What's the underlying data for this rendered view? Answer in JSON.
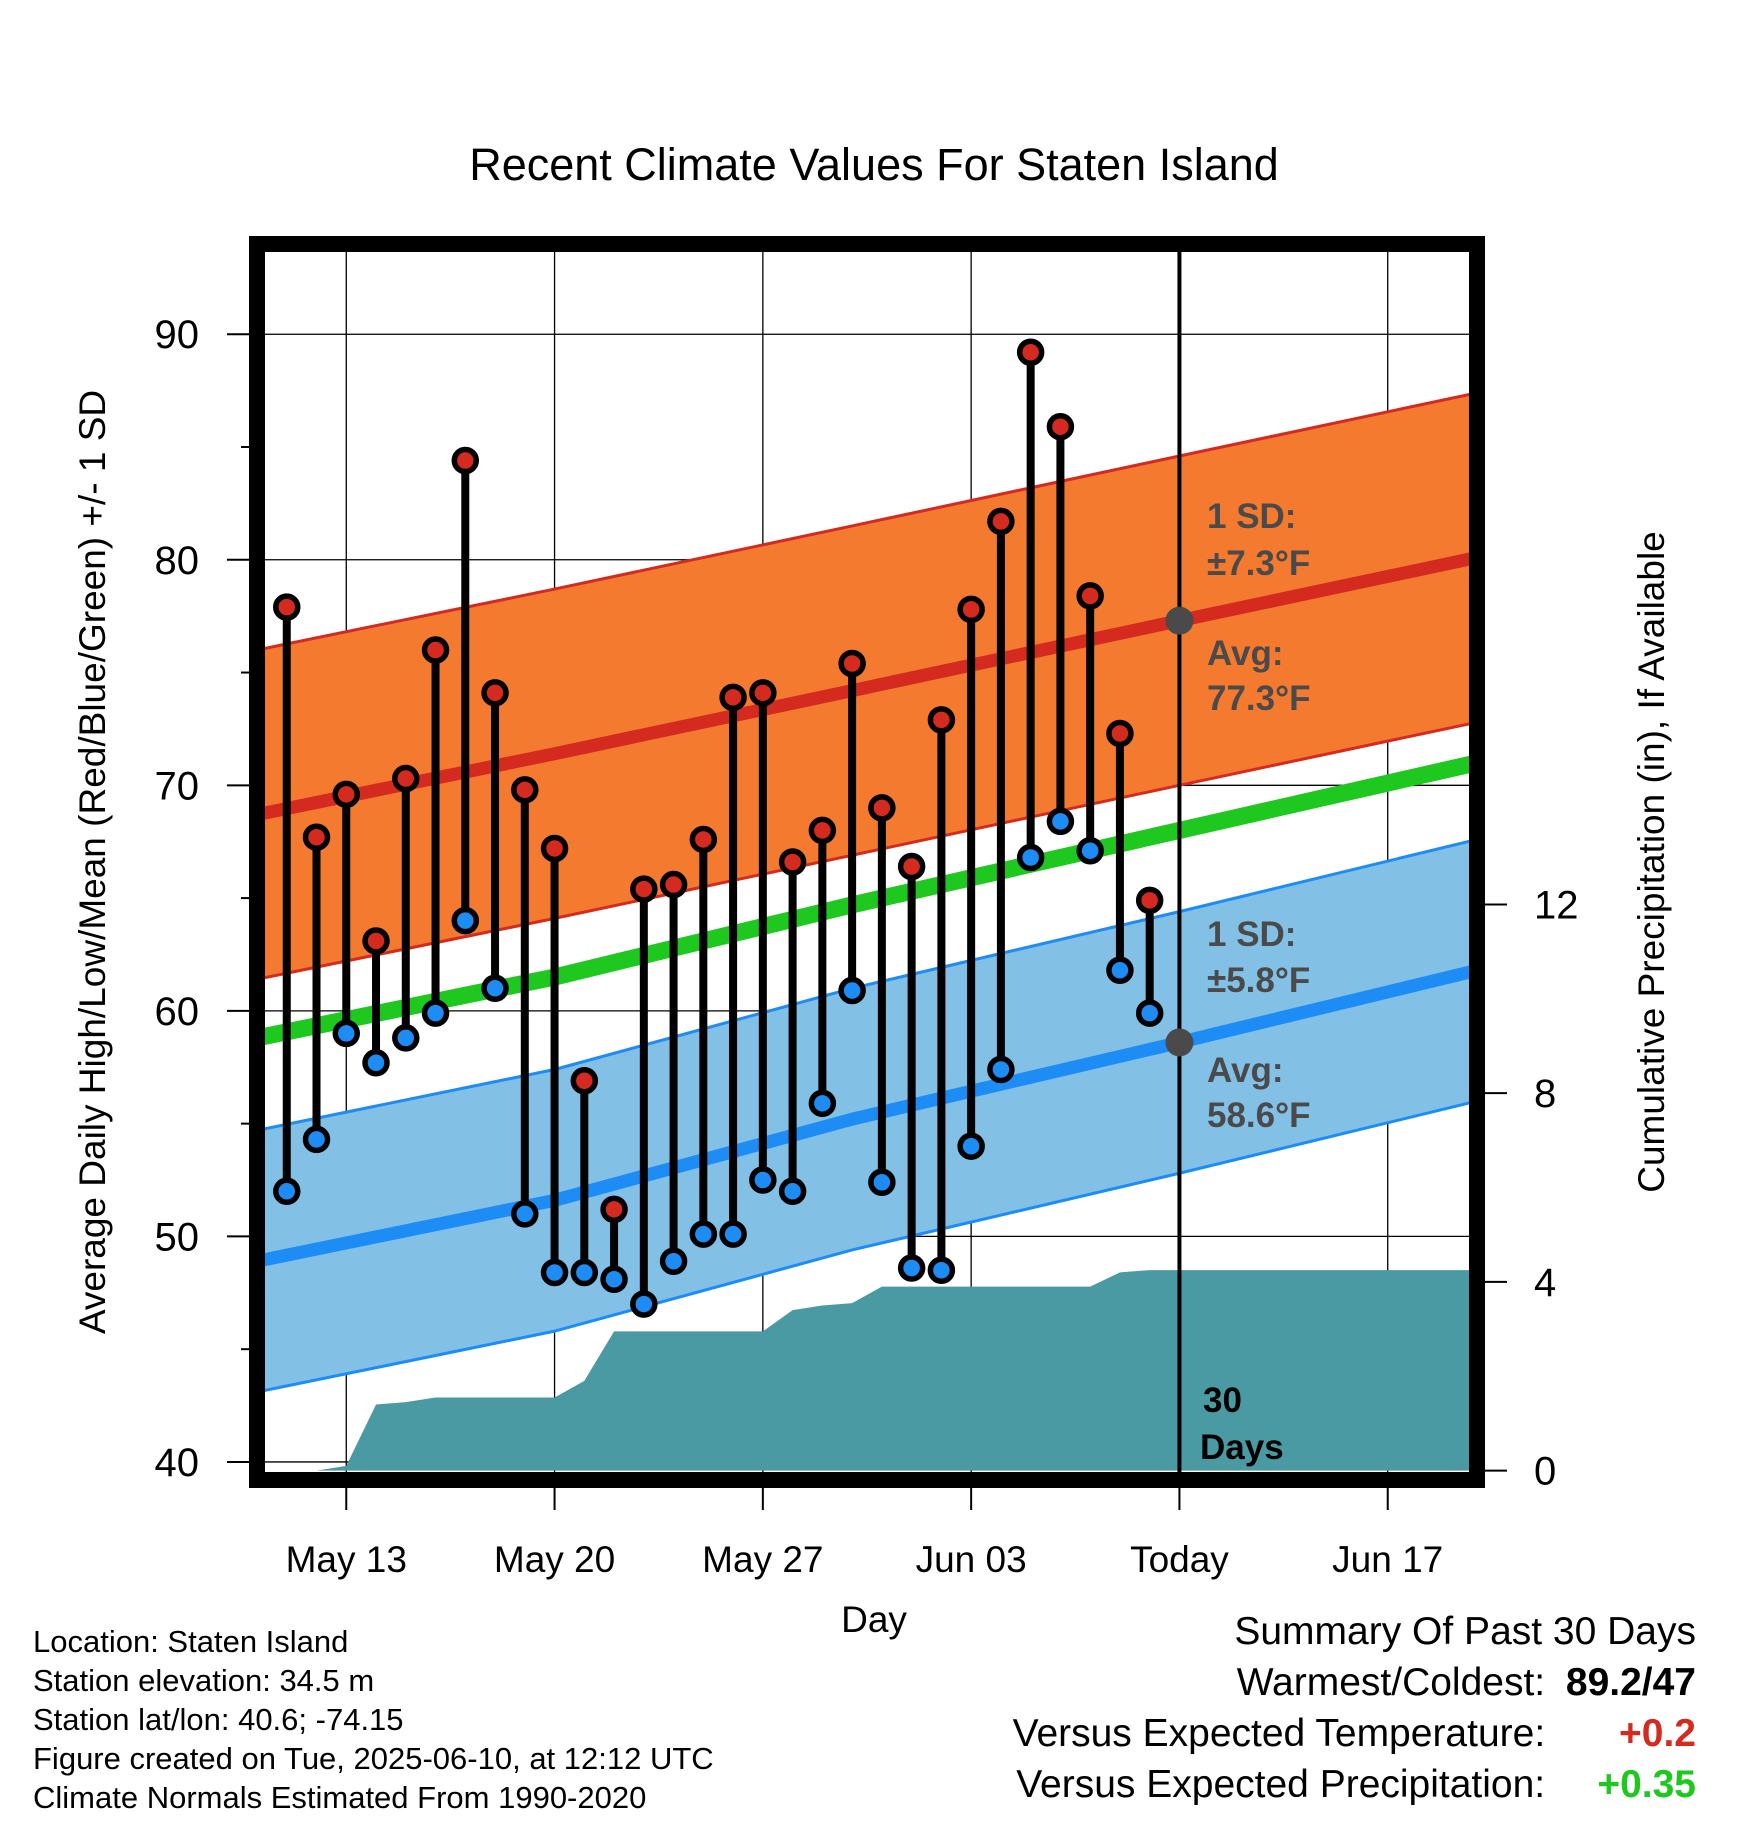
{
  "title": "Recent Climate Values For Staten Island",
  "colors": {
    "high_band": "#f47a30",
    "high_band_edge": "#d42a20",
    "high_avg": "#d42a20",
    "low_band": "#82c0e6",
    "low_band_edge": "#1e8cf5",
    "low_avg": "#1e8cf5",
    "mean_line": "#1ec81e",
    "precip": "#4a9aa4",
    "high_dot": "#d42a20",
    "low_dot": "#1e8cf5",
    "today_dot": "#4a4a4a",
    "positive_temp": "#d42a20",
    "positive_precip": "#1ec81e"
  },
  "chart_data": {
    "type": "line",
    "title": "Recent Climate Values For Staten Island",
    "xlabel": "Day",
    "ylabel": "Average Daily High/Low/Mean (Red/Blue/Green) +/- 1 SD",
    "y2label": "Cumulative Precipitation (in), If Available",
    "x_ticks": [
      "May 13",
      "May 20",
      "May 27",
      "Jun 03",
      "Today",
      "Jun 17"
    ],
    "x_range": [
      "May 10",
      "Jun 20"
    ],
    "y_ticks": [
      40,
      50,
      60,
      70,
      80,
      90
    ],
    "ylim": [
      39.2,
      94
    ],
    "y2_ticks": [
      0,
      4,
      8,
      12
    ],
    "y2lim": [
      -0.2,
      26
    ],
    "grid": true,
    "today_label": "Today",
    "today_date": "Jun 10",
    "period_label_line1": "30",
    "period_label_line2": "Days",
    "high_sd_label_line1": "1 SD:",
    "high_sd_label_line2": "±7.3°F",
    "high_avg_label_line1": "Avg:",
    "high_avg_label_line2": "77.3°F",
    "low_sd_label_line1": "1 SD:",
    "low_sd_label_line2": "±5.8°F",
    "low_avg_label_line1": "Avg:",
    "low_avg_label_line2": "58.6°F",
    "normals": {
      "x": [
        "May 10",
        "May 20",
        "May 30",
        "Jun 10",
        "Jun 20"
      ],
      "avg_high": [
        68.7,
        71.4,
        74.2,
        77.3,
        80.1
      ],
      "high_sd": 7.3,
      "avg_low": [
        48.9,
        51.6,
        55.2,
        58.6,
        61.8
      ],
      "low_sd": 5.8,
      "mean": [
        58.8,
        61.5,
        64.7,
        68.0,
        71.0
      ]
    },
    "daily": {
      "dates": [
        "May 11",
        "May 12",
        "May 13",
        "May 14",
        "May 15",
        "May 16",
        "May 17",
        "May 18",
        "May 19",
        "May 20",
        "May 21",
        "May 22",
        "May 23",
        "May 24",
        "May 25",
        "May 26",
        "May 27",
        "May 28",
        "May 29",
        "May 30",
        "May 31",
        "Jun 01",
        "Jun 02",
        "Jun 03",
        "Jun 04",
        "Jun 05",
        "Jun 06",
        "Jun 07",
        "Jun 08",
        "Jun 09"
      ],
      "high": [
        77.9,
        67.7,
        69.6,
        63.1,
        70.3,
        76.0,
        84.4,
        74.1,
        69.8,
        67.2,
        56.9,
        51.2,
        65.4,
        65.6,
        67.6,
        73.9,
        74.1,
        66.6,
        68.0,
        75.4,
        69.0,
        66.4,
        72.9,
        77.8,
        81.7,
        89.2,
        85.9,
        78.4,
        72.3,
        64.9
      ],
      "low": [
        52.0,
        54.3,
        59.0,
        57.7,
        58.8,
        59.9,
        64.0,
        61.0,
        51.0,
        48.4,
        48.4,
        48.1,
        47.0,
        48.9,
        50.1,
        50.1,
        52.5,
        52.0,
        55.9,
        60.9,
        52.4,
        48.6,
        48.5,
        54.0,
        57.4,
        66.8,
        68.4,
        67.1,
        61.8,
        59.9
      ]
    },
    "precip": {
      "x": [
        "May 10",
        "May 12",
        "May 13",
        "May 14",
        "May 15",
        "May 16",
        "May 20",
        "May 21",
        "May 22",
        "May 27",
        "May 28",
        "May 29",
        "May 30",
        "May 31",
        "Jun 07",
        "Jun 08",
        "Jun 09",
        "Jun 20"
      ],
      "y": [
        0.0,
        0.0,
        0.1,
        1.4,
        1.45,
        1.55,
        1.55,
        1.9,
        2.95,
        2.95,
        3.4,
        3.5,
        3.55,
        3.9,
        3.9,
        4.2,
        4.25,
        4.25
      ]
    }
  },
  "info": {
    "location": "Location: Staten Island",
    "elevation": "Station elevation: 34.5 m",
    "latlon": "Station lat/lon: 40.6; -74.15",
    "created": "Figure created on Tue, 2025-06-10, at 12:12 UTC",
    "normals": "Climate Normals Estimated From 1990-2020"
  },
  "summary": {
    "heading": "Summary Of Past 30 Days",
    "warm_cold_label": "Warmest/Coldest:",
    "warmest": "89.2",
    "coldest": "/47",
    "temp_label": "Versus Expected Temperature:",
    "temp_value": "+0.2",
    "precip_label": "Versus Expected Precipitation:",
    "precip_value": "+0.35"
  }
}
